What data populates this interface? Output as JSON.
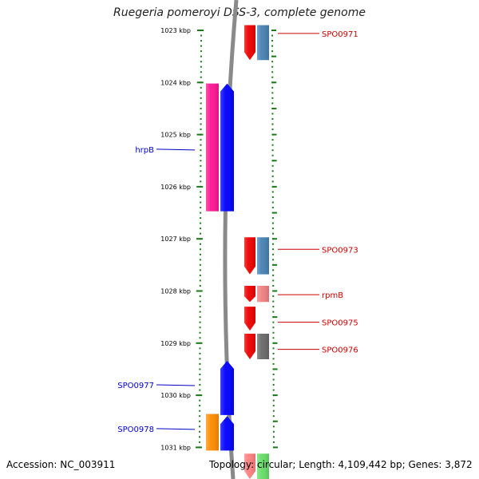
{
  "title": "Ruegeria pomeroyi DSS-3, complete genome",
  "footer": {
    "accession": "Accession: NC_003911",
    "topology": "Topology: circular; Length: 4,109,442 bp; Genes: 3,872"
  },
  "colors": {
    "backbone": "#8a8a8a",
    "tick": "#1a7a1a",
    "left_label": "#0000cc",
    "right_label": "#cc0000"
  },
  "ticks": [
    {
      "label": "1023 kbp"
    },
    {
      "label": "1024 kbp"
    },
    {
      "label": "1025 kbp"
    },
    {
      "label": "1026 kbp"
    },
    {
      "label": "1027 kbp"
    },
    {
      "label": "1028 kbp"
    },
    {
      "label": "1029 kbp"
    },
    {
      "label": "1030 kbp"
    },
    {
      "label": "1031 kbp"
    }
  ],
  "axis_range_kbp": [
    1022.95,
    1031.05
  ],
  "features": [
    {
      "track": "plus-inner",
      "start": 1022.9,
      "end": 1023.57,
      "color": "#ee0000",
      "arrow": "down"
    },
    {
      "track": "plus-outer",
      "start": 1022.9,
      "end": 1023.57,
      "color": "#4682b4",
      "arrow": "none"
    },
    {
      "track": "minus-outer",
      "start": 1024.02,
      "end": 1026.47,
      "color": "#ff1493",
      "arrow": "none"
    },
    {
      "track": "minus-inner",
      "start": 1024.02,
      "end": 1026.47,
      "color": "#0000ff",
      "arrow": "up"
    },
    {
      "track": "plus-inner",
      "start": 1026.97,
      "end": 1027.68,
      "color": "#ee0000",
      "arrow": "down"
    },
    {
      "track": "plus-outer",
      "start": 1026.97,
      "end": 1027.68,
      "color": "#4682b4",
      "arrow": "none"
    },
    {
      "track": "plus-inner",
      "start": 1027.9,
      "end": 1028.21,
      "color": "#ee0000",
      "arrow": "down"
    },
    {
      "track": "plus-outer",
      "start": 1027.9,
      "end": 1028.21,
      "color": "#f08080",
      "arrow": "none"
    },
    {
      "track": "plus-inner",
      "start": 1028.3,
      "end": 1028.76,
      "color": "#ee0000",
      "arrow": "down"
    },
    {
      "track": "plus-inner",
      "start": 1028.82,
      "end": 1029.31,
      "color": "#ee0000",
      "arrow": "down"
    },
    {
      "track": "plus-outer",
      "start": 1028.82,
      "end": 1029.31,
      "color": "#696969",
      "arrow": "none"
    },
    {
      "track": "minus-outer",
      "start": 1030.36,
      "end": 1030.98,
      "color": "#4682b4",
      "arrow": "none"
    },
    {
      "track": "minus-inner",
      "start": 1029.34,
      "end": 1030.38,
      "color": "#0000ff",
      "arrow": "up"
    },
    {
      "track": "minus-outer",
      "start": 1030.36,
      "end": 1031.06,
      "color": "#ff8c00",
      "arrow": "none"
    },
    {
      "track": "minus-inner",
      "start": 1030.4,
      "end": 1031.06,
      "color": "#0000ff",
      "arrow": "up"
    },
    {
      "track": "plus-inner",
      "start": 1031.12,
      "end": 1031.7,
      "color": "#ff8080",
      "arrow": "down"
    },
    {
      "track": "plus-outer",
      "start": 1031.12,
      "end": 1031.7,
      "color": "#66dd66",
      "arrow": "none"
    }
  ],
  "labels_left": [
    {
      "text": "hrpB",
      "kbp": 1025.28
    },
    {
      "text": "SPO0977",
      "kbp": 1029.8
    },
    {
      "text": "SPO0978",
      "kbp": 1030.64
    }
  ],
  "labels_right": [
    {
      "text": "SPO0971",
      "kbp": 1023.06
    },
    {
      "text": "SPO0973",
      "kbp": 1027.2
    },
    {
      "text": "rpmB",
      "kbp": 1028.07
    },
    {
      "text": "SPO0975",
      "kbp": 1028.6
    },
    {
      "text": "SPO0976",
      "kbp": 1029.12
    }
  ]
}
